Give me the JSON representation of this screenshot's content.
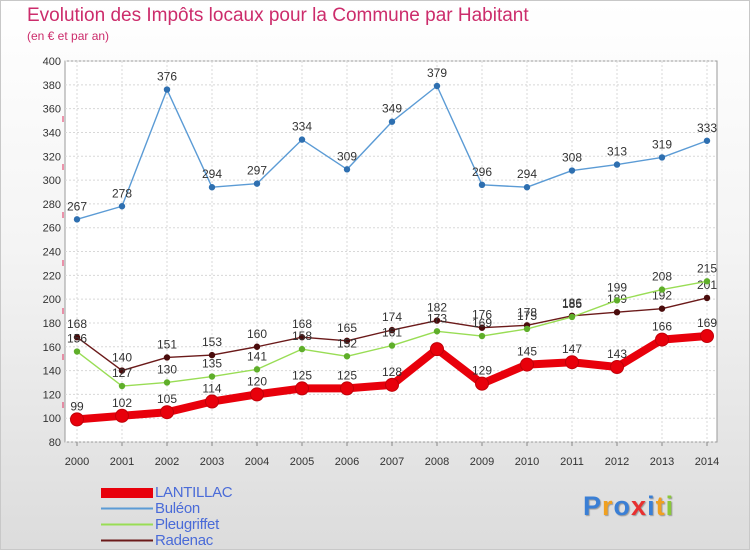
{
  "chart_data": {
    "type": "line",
    "title": "Evolution des Impôts locaux pour la Commune par Habitant",
    "subtitle": "(en € et par an)",
    "xlabel": "",
    "ylabel": "",
    "ylim": [
      80,
      400
    ],
    "yticks": [
      80,
      100,
      120,
      140,
      160,
      180,
      200,
      220,
      240,
      260,
      280,
      300,
      320,
      340,
      360,
      380,
      400
    ],
    "categories": [
      "2000",
      "2001",
      "2002",
      "2003",
      "2004",
      "2005",
      "2006",
      "2007",
      "2008",
      "2009",
      "2010",
      "2011",
      "2012",
      "2013",
      "2014"
    ],
    "series": [
      {
        "name": "LANTILLAC",
        "color": "#e8000b",
        "values": [
          99,
          102,
          105,
          114,
          120,
          125,
          125,
          128,
          158,
          129,
          145,
          147,
          143,
          166,
          169
        ],
        "labels": [
          "99",
          "102",
          "105",
          "114",
          "120",
          "125",
          "125",
          "128",
          "",
          "129",
          "145",
          "147",
          "143",
          "166",
          "169"
        ]
      },
      {
        "name": "Buléon",
        "color": "#5b9bd5",
        "values": [
          267,
          278,
          376,
          294,
          297,
          334,
          309,
          349,
          379,
          296,
          294,
          308,
          313,
          319,
          333
        ],
        "labels": [
          "267",
          "278",
          "376",
          "294",
          "297",
          "334",
          "309",
          "349",
          "379",
          "296",
          "294",
          "308",
          "313",
          "319",
          "333"
        ]
      },
      {
        "name": "Pleugriffet",
        "color": "#99dd55",
        "values": [
          156,
          127,
          130,
          135,
          141,
          158,
          152,
          161,
          173,
          169,
          175,
          185,
          199,
          208,
          215
        ],
        "labels": [
          "156",
          "127",
          "130",
          "135",
          "141",
          "158",
          "152",
          "161",
          "173",
          "169",
          "175",
          "185",
          "199",
          "208",
          "215"
        ]
      },
      {
        "name": "Radenac",
        "color": "#6b1a1a",
        "values": [
          168,
          140,
          151,
          153,
          160,
          168,
          165,
          174,
          182,
          176,
          178,
          186,
          189,
          192,
          201
        ],
        "labels": [
          "168",
          "140",
          "151",
          "153",
          "160",
          "168",
          "165",
          "174",
          "182",
          "176",
          "178",
          "186",
          "189",
          "192",
          "201"
        ]
      }
    ]
  },
  "legend": [
    "LANTILLAC",
    "Buléon",
    "Pleugriffet",
    "Radenac"
  ],
  "brand": {
    "letters": [
      "P",
      "r",
      "o",
      "x",
      "i",
      "t",
      "i"
    ],
    "colors": [
      "#3a7fd5",
      "#f0a020",
      "#3a7fd5",
      "#e83030",
      "#3a7fd5",
      "#f0a020",
      "#8ac83a"
    ]
  }
}
